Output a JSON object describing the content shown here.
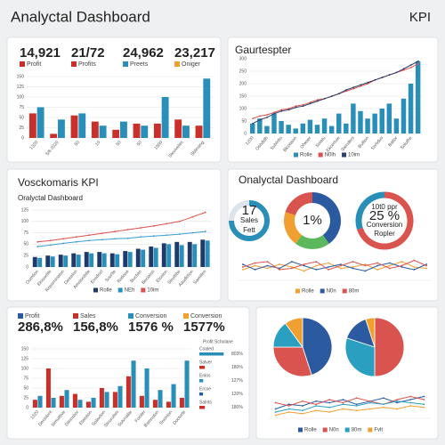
{
  "header": {
    "title": "Analyctal Dashboard",
    "badge": "KPI"
  },
  "panels": [
    {
      "kpis": [
        {
          "value": "14,921",
          "label": "Profit",
          "color": "#c9302c"
        },
        {
          "value": "21/72",
          "label": "Profits",
          "color": "#c9302c"
        },
        {
          "value": "24,962",
          "label": "Preets",
          "color": "#2a8fb8"
        },
        {
          "value": "23,217",
          "label": "Oniger",
          "color": "#f0a030"
        }
      ],
      "chart": {
        "type": "bar",
        "categories": [
          "1320",
          "5/6 2020",
          "50",
          "10",
          "50",
          "50",
          "1500",
          "Steviveles",
          "Sblinsing"
        ],
        "series": [
          {
            "kind": "bar",
            "color": "#c9302c",
            "values": [
              60,
              10,
              55,
              40,
              20,
              35,
              35,
              45,
              30
            ]
          },
          {
            "kind": "bar",
            "color": "#2a8fb8",
            "values": [
              75,
              45,
              60,
              30,
              40,
              30,
              100,
              30,
              145
            ]
          }
        ],
        "ylim": [
          0,
          150
        ],
        "yticks": [
          0,
          25,
          50,
          75,
          100,
          125,
          150
        ]
      }
    },
    {
      "title": "Gaurtespter",
      "chart": {
        "type": "bar-line",
        "categories": [
          "1200",
          null,
          "Oshdidb",
          null,
          "Sublntio",
          null,
          "Blcotaion",
          null,
          "Ofwoer",
          null,
          "Solatu",
          null,
          "Ekcertuie",
          null,
          "Stenders",
          null,
          "Bultion",
          null,
          "Sorlidus",
          null,
          "Batlor",
          null,
          "Soluthe",
          null
        ],
        "series": [
          {
            "name": "Rolle",
            "kind": "bar",
            "color": "#2a8fb8",
            "values": [
              40,
              60,
              30,
              80,
              50,
              35,
              20,
              40,
              55,
              35,
              60,
              30,
              80,
              40,
              120,
              90,
              60,
              80,
              100,
              120,
              60,
              140,
              200,
              290
            ]
          },
          {
            "name": "N0lh",
            "kind": "line",
            "color": "#d9534f",
            "values": [
              60,
              70,
              75,
              85,
              95,
              100,
              110,
              115,
              125,
              135,
              140,
              150,
              160,
              170,
              180,
              190,
              200,
              215,
              225,
              235,
              245,
              255,
              265,
              280
            ]
          },
          {
            "name": "10im",
            "kind": "line",
            "color": "#2c3e6b",
            "values": [
              40,
              55,
              65,
              80,
              90,
              95,
              105,
              110,
              120,
              130,
              140,
              150,
              160,
              175,
              185,
              195,
              205,
              215,
              225,
              235,
              245,
              260,
              275,
              290
            ]
          }
        ],
        "ylim": [
          0,
          300
        ],
        "yticks": [
          0,
          50,
          100,
          150,
          200,
          250,
          300
        ]
      }
    },
    {
      "title": "Vosckomaris KPI",
      "subtitle": "Oralyctal Dashboard",
      "chart": {
        "type": "bar-line",
        "categories": [
          "Oumtion",
          "Ekisoxtite",
          "Roporninaton",
          "Deicelon",
          "Amslonibite",
          "Ensdoxt",
          "Sourlte",
          "Rotlona",
          "Buctian",
          "Beclatos",
          "Etcolon",
          "Sinoltibe",
          "Aaudirtion",
          "Samillen"
        ],
        "series": [
          {
            "name": "Rolle",
            "kind": "bar",
            "color": "#1f3a68",
            "values": [
              22,
              25,
              27,
              30,
              33,
              33,
              30,
              35,
              40,
              45,
              52,
              55,
              55,
              60
            ]
          },
          {
            "name": "NEh",
            "kind": "bar",
            "color": "#2a8fb8",
            "values": [
              20,
              23,
              25,
              27,
              30,
              30,
              28,
              33,
              38,
              42,
              50,
              48,
              50,
              58
            ]
          },
          {
            "name": "10im",
            "kind": "line",
            "color": "#d9534f",
            "values": [
              55,
              58,
              62,
              66,
              70,
              74,
              78,
              82,
              86,
              90,
              95,
              100,
              110,
              120
            ]
          },
          {
            "kind": "line",
            "color": "#3b9fd0",
            "values": [
              45,
              48,
              52,
              55,
              58,
              60,
              62,
              63,
              66,
              68,
              70,
              72,
              75,
              78
            ]
          }
        ],
        "ylim": [
          0,
          125
        ],
        "yticks": [
          0,
          25,
          50,
          75,
          100,
          125
        ]
      }
    },
    {
      "title": "Onalyctal Dashboard",
      "donuts": [
        {
          "values": [
            75,
            25
          ],
          "colors": [
            "#2a8fb8",
            "#dde3ea"
          ],
          "center_text": [
            "17",
            "Sales",
            "Fett"
          ]
        },
        {
          "values": [
            40,
            20,
            20,
            20
          ],
          "colors": [
            "#2c5aa0",
            "#5cb85c",
            "#f0a030",
            "#d9534f"
          ],
          "center_text": [
            "1%"
          ]
        },
        {
          "values": [
            70,
            30
          ],
          "colors": [
            "#d9534f",
            "#2a8fb8"
          ],
          "center_text": [
            "10t0 ppr",
            "25 %",
            "Conversion",
            "Ropler"
          ]
        }
      ],
      "chart": {
        "type": "line",
        "series": [
          {
            "name": "Rolle",
            "kind": "line",
            "color": "#f0a030",
            "values": [
              40,
              55,
              45,
              60,
              50,
              35,
              55,
              65,
              45,
              50,
              60,
              40,
              55,
              70,
              50,
              45
            ]
          },
          {
            "name": "N0n",
            "kind": "line",
            "color": "#2c5aa0",
            "values": [
              60,
              40,
              55,
              45,
              70,
              55,
              40,
              50,
              60,
              45,
              35,
              55,
              65,
              50,
              40,
              60
            ]
          },
          {
            "name": "80m",
            "kind": "line",
            "color": "#d9534f",
            "values": [
              50,
              65,
              70,
              40,
              45,
              60,
              70,
              40,
              55,
              70,
              55,
              65,
              45,
              55,
              75,
              55
            ]
          }
        ],
        "ylim": [
          0,
          100
        ]
      }
    },
    {
      "kpis": [
        {
          "value": "286,8%",
          "label": "Profit",
          "color": "#2c5aa0"
        },
        {
          "value": "156,8%",
          "label": "Sales",
          "color": "#c9302c"
        },
        {
          "value": "1576 %",
          "label": "Conversion",
          "color": "#2a8fb8"
        },
        {
          "value": "1577%",
          "label": "Conversion",
          "color": "#f0a030"
        }
      ],
      "chart": {
        "type": "bar",
        "categories": [
          "1320",
          "Deciolont",
          "Simuittive",
          "Dlinnsbor",
          "Etalotion",
          "Solaxtion",
          "Stnuruties",
          "Sotvnalile",
          "Foniler",
          "Bsmnoton",
          "Sncinlon",
          "Doctorte"
        ],
        "series": [
          {
            "kind": "bar",
            "color": "#c9302c",
            "values": [
              20,
              100,
              30,
              35,
              15,
              50,
              40,
              80,
              30,
              20,
              15,
              25
            ]
          },
          {
            "kind": "bar",
            "color": "#2a8fb8",
            "values": [
              30,
              25,
              45,
              20,
              25,
              40,
              55,
              120,
              100,
              45,
              60,
              120
            ]
          }
        ],
        "ylim": [
          0,
          150
        ],
        "yticks": [
          0,
          25,
          50,
          75,
          100,
          125,
          150
        ]
      },
      "hbars": {
        "title": "Profit Scholane",
        "xlim": [
          0,
          1000
        ],
        "items": [
          {
            "label": "Coaled",
            "value": 803,
            "value_label": "803%",
            "color": "#2a8fb8"
          },
          {
            "label": "Salver",
            "value": 180,
            "value_label": "180%",
            "color": "#c9302c"
          },
          {
            "label": "Enlos",
            "value": 127,
            "value_label": "127%",
            "color": "#2a8fb8"
          },
          {
            "label": "Ercoe",
            "value": 120,
            "value_label": "120%",
            "color": "#2c5aa0"
          },
          {
            "label": "Salnts",
            "value": 180,
            "value_label": "180%",
            "color": "#c9302c"
          }
        ]
      }
    },
    {
      "pies": [
        {
          "values": [
            45,
            30,
            15,
            10
          ],
          "colors": [
            "#2c5aa0",
            "#d9534f",
            "#2a9fc0",
            "#f0a030"
          ]
        },
        {
          "values": [
            50,
            30,
            15,
            5
          ],
          "colors": [
            "#d9534f",
            "#2a9fc0",
            "#2c5aa0",
            "#f0a030"
          ]
        }
      ],
      "chart": {
        "type": "line",
        "series": [
          {
            "name": "Rolle",
            "kind": "line",
            "color": "#2c5aa0",
            "values": [
              30,
              45,
              40,
              55,
              50,
              60,
              45,
              55,
              65,
              50,
              60,
              70
            ]
          },
          {
            "name": "N0n",
            "kind": "line",
            "color": "#d9534f",
            "values": [
              50,
              40,
              55,
              45,
              60,
              50,
              65,
              55,
              45,
              60,
              70,
              60
            ]
          },
          {
            "name": "80m",
            "kind": "line",
            "color": "#2a9fc0",
            "values": [
              20,
              30,
              25,
              40,
              35,
              45,
              40,
              50,
              45,
              55,
              50,
              45
            ]
          },
          {
            "name": "Fvlt",
            "kind": "line",
            "color": "#f0a030",
            "values": [
              10,
              20,
              15,
              25,
              20,
              30,
              25,
              30,
              35,
              30,
              40,
              35
            ]
          }
        ],
        "ylim": [
          0,
          100
        ]
      }
    }
  ]
}
